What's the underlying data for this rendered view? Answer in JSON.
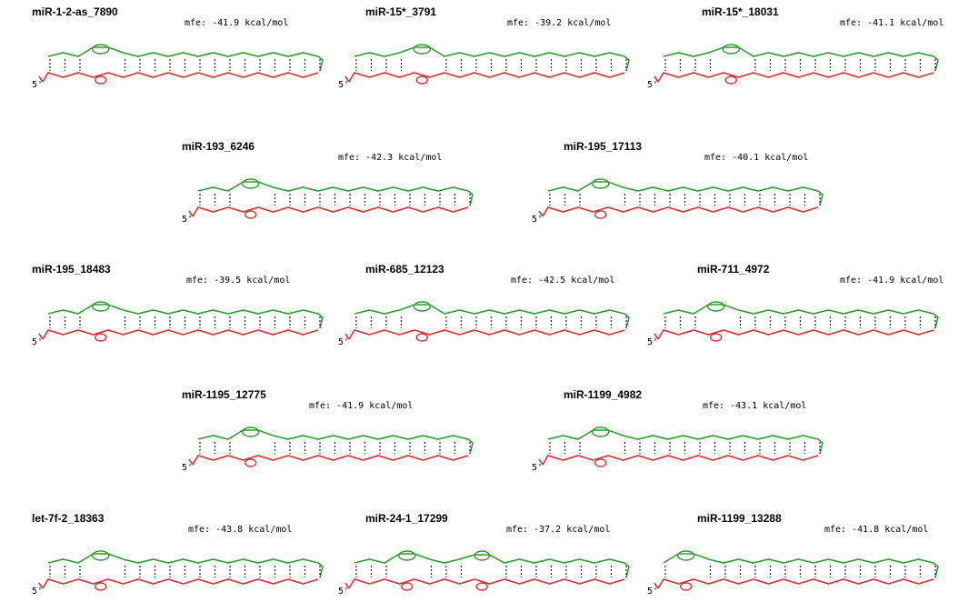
{
  "figure": {
    "colors": {
      "mirna_strand": "#2e9e2e",
      "target_strand": "#e03030",
      "pair_bond": "#222222"
    },
    "five_prime_label": "5'",
    "panels": [
      {
        "title": "miR-1-2-as_7890",
        "mfe": "mfe: -41.9 kcal/mol"
      },
      {
        "title": "miR-15*_3791",
        "mfe": "mfe: -39.2 kcal/mol"
      },
      {
        "title": "miR-15*_18031",
        "mfe": "mfe: -41.1 kcal/mol"
      },
      {
        "title": "miR-193_6246",
        "mfe": "mfe: -42.3 kcal/mol"
      },
      {
        "title": "miR-195_17113",
        "mfe": "mfe: -40.1 kcal/mol"
      },
      {
        "title": "miR-195_18483",
        "mfe": "mfe: -39.5 kcal/mol"
      },
      {
        "title": "miR-685_12123",
        "mfe": "mfe: -42.5 kcal/mol"
      },
      {
        "title": "miR-711_4972",
        "mfe": "mfe: -41.9 kcal/mol"
      },
      {
        "title": "miR-1195_12775",
        "mfe": "mfe: -41.9 kcal/mol"
      },
      {
        "title": "miR-1199_4982",
        "mfe": "mfe: -43.1 kcal/mol"
      },
      {
        "title": "let-7f-2_18363",
        "mfe": "mfe: -43.8 kcal/mol"
      },
      {
        "title": "miR-24-1_17299",
        "mfe": "mfe: -37.2 kcal/mol"
      },
      {
        "title": "miR-1199_13288",
        "mfe": "mfe: -41.8 kcal/mol"
      }
    ]
  }
}
